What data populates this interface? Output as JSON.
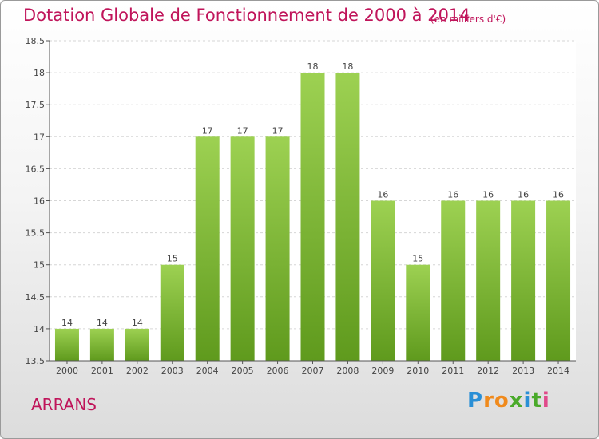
{
  "chart_data": {
    "type": "bar",
    "title": "Dotation Globale de Fonctionnement de 2000 à 2014",
    "subtitle": "(en milliers d'€)",
    "categories": [
      "2000",
      "2001",
      "2002",
      "2003",
      "2004",
      "2005",
      "2006",
      "2007",
      "2008",
      "2009",
      "2010",
      "2011",
      "2012",
      "2013",
      "2014"
    ],
    "values": [
      14,
      14,
      14,
      15,
      17,
      17,
      17,
      18,
      18,
      16,
      15,
      16,
      16,
      16,
      16
    ],
    "value_labels": [
      "14",
      "14",
      "14",
      "15",
      "17",
      "17",
      "17",
      "18",
      "18",
      "16",
      "15",
      "16",
      "16",
      "16",
      "16"
    ],
    "yticks": [
      13.5,
      14,
      14.5,
      15,
      15.5,
      16,
      16.5,
      17,
      17.5,
      18,
      18.5
    ],
    "ytick_labels": [
      "13.5",
      "14",
      "14.5",
      "15",
      "15.5",
      "16",
      "16.5",
      "17",
      "17.5",
      "18",
      "18.5"
    ],
    "ylim": [
      13.5,
      18.5
    ],
    "xlabel": "",
    "ylabel": "",
    "grid": true,
    "bar_color": "#7ab52f"
  },
  "place_name": "ARRANS",
  "logo": {
    "letters": [
      "P",
      "r",
      "o",
      "x",
      "i",
      "t",
      "i"
    ],
    "colors": [
      "#2a8fd6",
      "#f08a1c",
      "#f08a1c",
      "#4aaa2a",
      "#2a8fd6",
      "#4aaa2a",
      "#e04a8a"
    ]
  }
}
